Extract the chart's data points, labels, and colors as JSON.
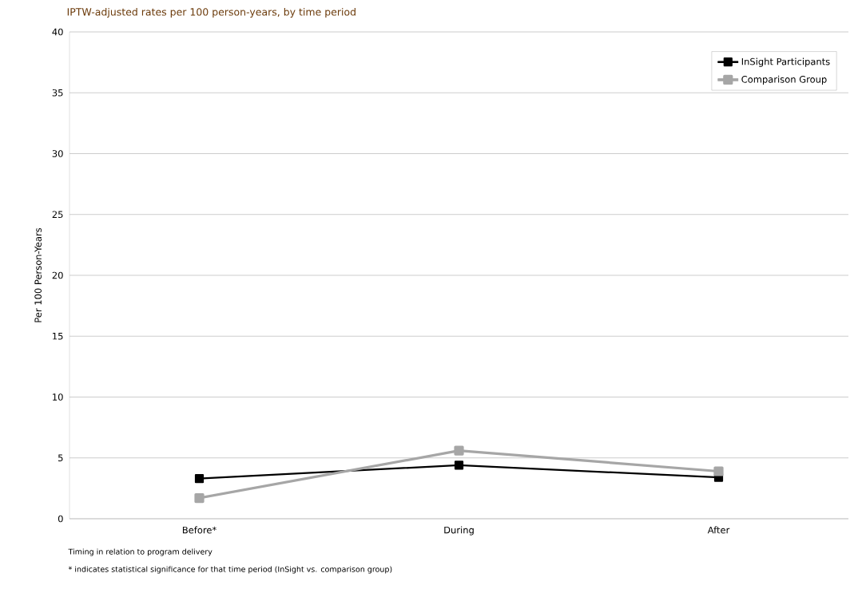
{
  "chart_data": {
    "type": "line",
    "subtitle": "IPTW-adjusted rates per 100 person-years, by time period",
    "ylabel": "Per 100 Person-Years",
    "categories": [
      "Before*",
      "During",
      "After"
    ],
    "series": [
      {
        "name": "InSight Participants",
        "color": "#000000",
        "values": [
          3.3,
          4.4,
          3.4
        ]
      },
      {
        "name": "Comparison Group",
        "color": "#a6a6a6",
        "values": [
          1.7,
          5.6,
          3.9
        ]
      }
    ],
    "ylim": [
      0,
      40
    ],
    "yticks": [
      0,
      5,
      10,
      15,
      20,
      25,
      30,
      35,
      40
    ],
    "grid": "y",
    "legend": "top right",
    "marker": "square",
    "line_style": "solid",
    "annotations": [
      "Timing in relation to program delivery",
      "* indicates statistical significance for that time period (InSight vs. comparison group)"
    ]
  }
}
